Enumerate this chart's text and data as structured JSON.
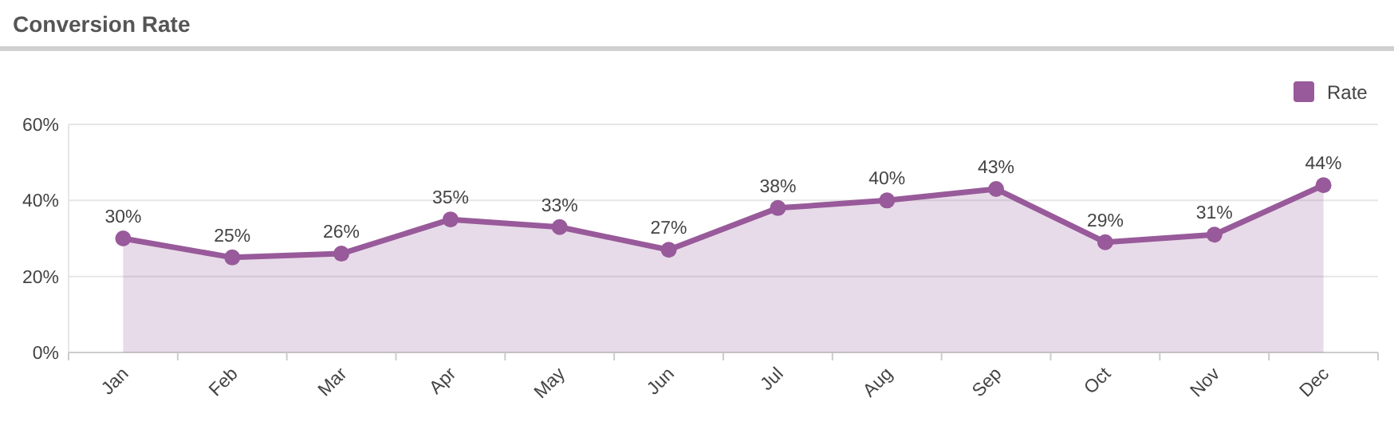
{
  "chart_data": {
    "type": "area",
    "title": "Conversion Rate",
    "categories": [
      "Jan",
      "Feb",
      "Mar",
      "Apr",
      "May",
      "Jun",
      "Jul",
      "Aug",
      "Sep",
      "Oct",
      "Nov",
      "Dec"
    ],
    "series": [
      {
        "name": "Rate",
        "color": "#985a9a",
        "values": [
          30,
          25,
          26,
          35,
          33,
          27,
          38,
          40,
          43,
          29,
          31,
          44
        ],
        "value_labels": [
          "30%",
          "25%",
          "26%",
          "35%",
          "33%",
          "27%",
          "38%",
          "40%",
          "43%",
          "29%",
          "31%",
          "44%"
        ]
      }
    ],
    "ylim": [
      0,
      60
    ],
    "yticks": [
      {
        "value": 0,
        "label": "0%"
      },
      {
        "value": 20,
        "label": "20%"
      },
      {
        "value": 40,
        "label": "40%"
      },
      {
        "value": 60,
        "label": "60%"
      }
    ],
    "grid": "y",
    "legend": "top right",
    "marker": "circle",
    "line_style": "solid"
  }
}
